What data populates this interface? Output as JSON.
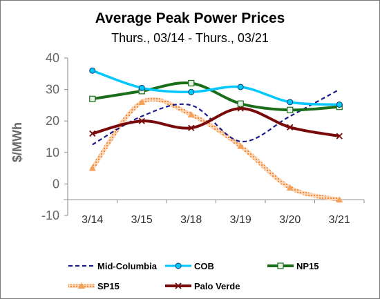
{
  "chart_data": {
    "type": "line",
    "title": "Average Peak Power Prices",
    "subtitle": "Thurs., 03/14 - Thurs., 03/21",
    "ylabel": "$/MWh",
    "xlabel": "",
    "categories": [
      "3/14",
      "3/15",
      "3/18",
      "3/19",
      "3/20",
      "3/21"
    ],
    "ylim": [
      -10,
      40
    ],
    "yticks": [
      "-10",
      "0",
      "10",
      "20",
      "30",
      "40"
    ],
    "grid": false,
    "legend_position": "bottom",
    "series": [
      {
        "name": "Mid-Columbia",
        "values": [
          12.5,
          21.5,
          25,
          13.5,
          21.5,
          30
        ],
        "color": "#1a1a8c",
        "style": "dashed",
        "marker": "none"
      },
      {
        "name": "COB",
        "values": [
          36,
          30.5,
          29.2,
          30.8,
          26,
          25.2
        ],
        "color": "#00c8ff",
        "style": "solid",
        "marker": "circle"
      },
      {
        "name": "NP15",
        "values": [
          27,
          29.5,
          32,
          25.5,
          23.5,
          24.5
        ],
        "color": "#1a6e1a",
        "style": "solid",
        "marker": "square"
      },
      {
        "name": "SP15",
        "values": [
          5,
          26,
          22,
          12,
          -1.2,
          -5
        ],
        "color": "#f4a15a",
        "style": "dotted-band",
        "marker": "triangle"
      },
      {
        "name": "Palo Verde",
        "values": [
          16,
          20,
          17.8,
          24,
          18,
          15.2
        ],
        "color": "#7a0a0a",
        "style": "solid",
        "marker": "x"
      }
    ]
  }
}
